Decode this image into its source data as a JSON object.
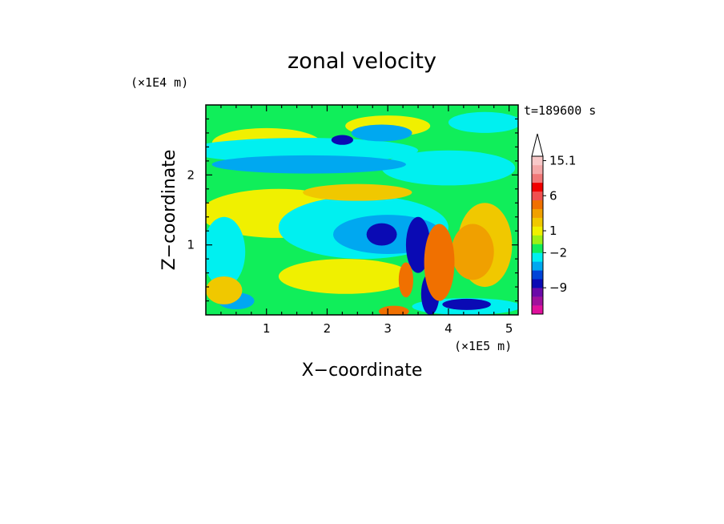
{
  "chart_data": {
    "type": "heatmap",
    "title": "zonal velocity",
    "xlabel": "X−coordinate",
    "ylabel": "Z−coordinate",
    "x_unit": "(×1E5 m)",
    "y_unit": "(×1E4 m)",
    "time_label": "t=189600 s",
    "xlim": [
      0,
      5.15
    ],
    "ylim": [
      0,
      3.0
    ],
    "x_ticks": [
      {
        "value": 1,
        "label": "1"
      },
      {
        "value": 2,
        "label": "2"
      },
      {
        "value": 3,
        "label": "3"
      },
      {
        "value": 4,
        "label": "4"
      },
      {
        "value": 5,
        "label": "5"
      }
    ],
    "y_ticks": [
      {
        "value": 1,
        "label": "1"
      },
      {
        "value": 2,
        "label": "2"
      }
    ],
    "colorbar": {
      "colors": [
        "#e0109c",
        "#a0109c",
        "#6a0aa8",
        "#0a0ab4",
        "#0044d8",
        "#00a8f0",
        "#00f0f0",
        "#10ee5a",
        "#9cf014",
        "#f0f000",
        "#f0c800",
        "#f0a000",
        "#f07000",
        "#f05050",
        "#f00000",
        "#f07878",
        "#f4a8a8",
        "#f8c8c8"
      ],
      "labels": [
        {
          "text": "15.1",
          "at_band": 17.5
        },
        {
          "text": "6",
          "at_band": 13.5
        },
        {
          "text": "1",
          "at_band": 9.5
        },
        {
          "text": "−2",
          "at_band": 7.0
        },
        {
          "text": "−9",
          "at_band": 3.0
        }
      ]
    },
    "field_regions": [
      {
        "value": 0,
        "rect": [
          0.0,
          0.0,
          5.15,
          3.0
        ]
      },
      {
        "value": 1.5,
        "ellipse": [
          1.2,
          1.45,
          1.3,
          0.35
        ]
      },
      {
        "value": 1.5,
        "ellipse": [
          2.3,
          0.55,
          1.1,
          0.25
        ]
      },
      {
        "value": 1.5,
        "ellipse": [
          1.0,
          2.45,
          0.9,
          0.22
        ]
      },
      {
        "value": 1.5,
        "ellipse": [
          3.0,
          2.7,
          0.7,
          0.15
        ]
      },
      {
        "value": 2.5,
        "ellipse": [
          0.6,
          2.35,
          0.6,
          0.14
        ]
      },
      {
        "value": 2.5,
        "ellipse": [
          4.6,
          1.0,
          0.45,
          0.6
        ]
      },
      {
        "value": 3.0,
        "ellipse": [
          4.4,
          0.9,
          0.35,
          0.4
        ]
      },
      {
        "value": -1.0,
        "ellipse": [
          1.6,
          2.35,
          1.9,
          0.18
        ]
      },
      {
        "value": -1.0,
        "ellipse": [
          2.6,
          1.25,
          1.4,
          0.45
        ]
      },
      {
        "value": -1.0,
        "ellipse": [
          4.0,
          2.1,
          1.1,
          0.25
        ]
      },
      {
        "value": -1.0,
        "ellipse": [
          0.3,
          0.9,
          0.35,
          0.5
        ]
      },
      {
        "value": -1.0,
        "ellipse": [
          4.3,
          0.12,
          0.9,
          0.12
        ]
      },
      {
        "value": -1.0,
        "ellipse": [
          4.6,
          2.75,
          0.6,
          0.15
        ]
      },
      {
        "value": -2.0,
        "ellipse": [
          1.7,
          2.15,
          1.6,
          0.13
        ]
      },
      {
        "value": -2.0,
        "ellipse": [
          3.0,
          1.15,
          0.9,
          0.28
        ]
      },
      {
        "value": -2.0,
        "ellipse": [
          2.9,
          2.6,
          0.5,
          0.12
        ]
      },
      {
        "value": -2.0,
        "ellipse": [
          0.5,
          0.2,
          0.3,
          0.12
        ]
      },
      {
        "value": -6.0,
        "ellipse": [
          2.9,
          1.15,
          0.25,
          0.16
        ]
      },
      {
        "value": -6.0,
        "ellipse": [
          3.5,
          1.0,
          0.2,
          0.4
        ]
      },
      {
        "value": -6.0,
        "ellipse": [
          3.7,
          0.3,
          0.15,
          0.3
        ]
      },
      {
        "value": -6.0,
        "ellipse": [
          2.25,
          2.5,
          0.18,
          0.07
        ]
      },
      {
        "value": -6.0,
        "ellipse": [
          4.3,
          0.15,
          0.4,
          0.08
        ]
      },
      {
        "value": 5.0,
        "ellipse": [
          3.85,
          0.75,
          0.25,
          0.55
        ]
      },
      {
        "value": 5.0,
        "ellipse": [
          3.3,
          0.5,
          0.12,
          0.25
        ]
      },
      {
        "value": 5.0,
        "ellipse": [
          3.1,
          0.05,
          0.25,
          0.08
        ]
      },
      {
        "value": 2.5,
        "ellipse": [
          2.5,
          1.75,
          0.9,
          0.12
        ]
      },
      {
        "value": 2.5,
        "ellipse": [
          0.3,
          0.35,
          0.3,
          0.2
        ]
      }
    ]
  }
}
